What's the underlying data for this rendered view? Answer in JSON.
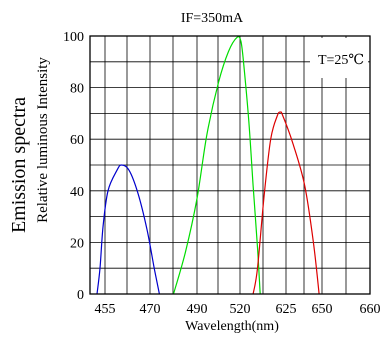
{
  "chart_data": {
    "type": "line",
    "title": "IF=350mA",
    "annotation": "T=25℃",
    "xlabel": "Wavelength(nm)",
    "ylabel_line1": "Emission spectra",
    "ylabel_line2": "Relative luminous Intensity",
    "x_ticks": [
      "455",
      "470",
      "490",
      "520",
      "625",
      "650",
      "660"
    ],
    "y_ticks": [
      "0",
      "20",
      "40",
      "60",
      "80",
      "100"
    ],
    "ylim": [
      0,
      100
    ],
    "grid": true,
    "series": [
      {
        "color": "#0000cc",
        "points": [
          [
            447,
            0
          ],
          [
            450,
            10
          ],
          [
            453,
            26
          ],
          [
            456,
            40
          ],
          [
            459,
            48
          ],
          [
            460.5,
            50
          ],
          [
            463,
            48
          ],
          [
            466,
            39
          ],
          [
            469,
            25
          ],
          [
            472,
            9
          ],
          [
            474,
            0
          ]
        ]
      },
      {
        "color": "#00dd00",
        "points": [
          [
            480,
            0
          ],
          [
            485,
            16
          ],
          [
            490,
            37
          ],
          [
            497,
            62
          ],
          [
            505,
            82
          ],
          [
            512,
            94
          ],
          [
            518,
            99.5
          ],
          [
            522,
            98
          ],
          [
            528,
            90
          ],
          [
            540,
            67
          ],
          [
            550,
            42
          ],
          [
            560,
            18
          ],
          [
            566,
            0
          ]
        ]
      },
      {
        "color": "#dd0000",
        "points": [
          [
            550,
            0
          ],
          [
            560,
            10
          ],
          [
            575,
            38
          ],
          [
            590,
            60
          ],
          [
            605,
            69
          ],
          [
            612,
            70.5
          ],
          [
            618,
            69
          ],
          [
            630,
            58
          ],
          [
            638,
            42
          ],
          [
            644,
            20
          ],
          [
            648,
            0
          ]
        ]
      }
    ]
  }
}
